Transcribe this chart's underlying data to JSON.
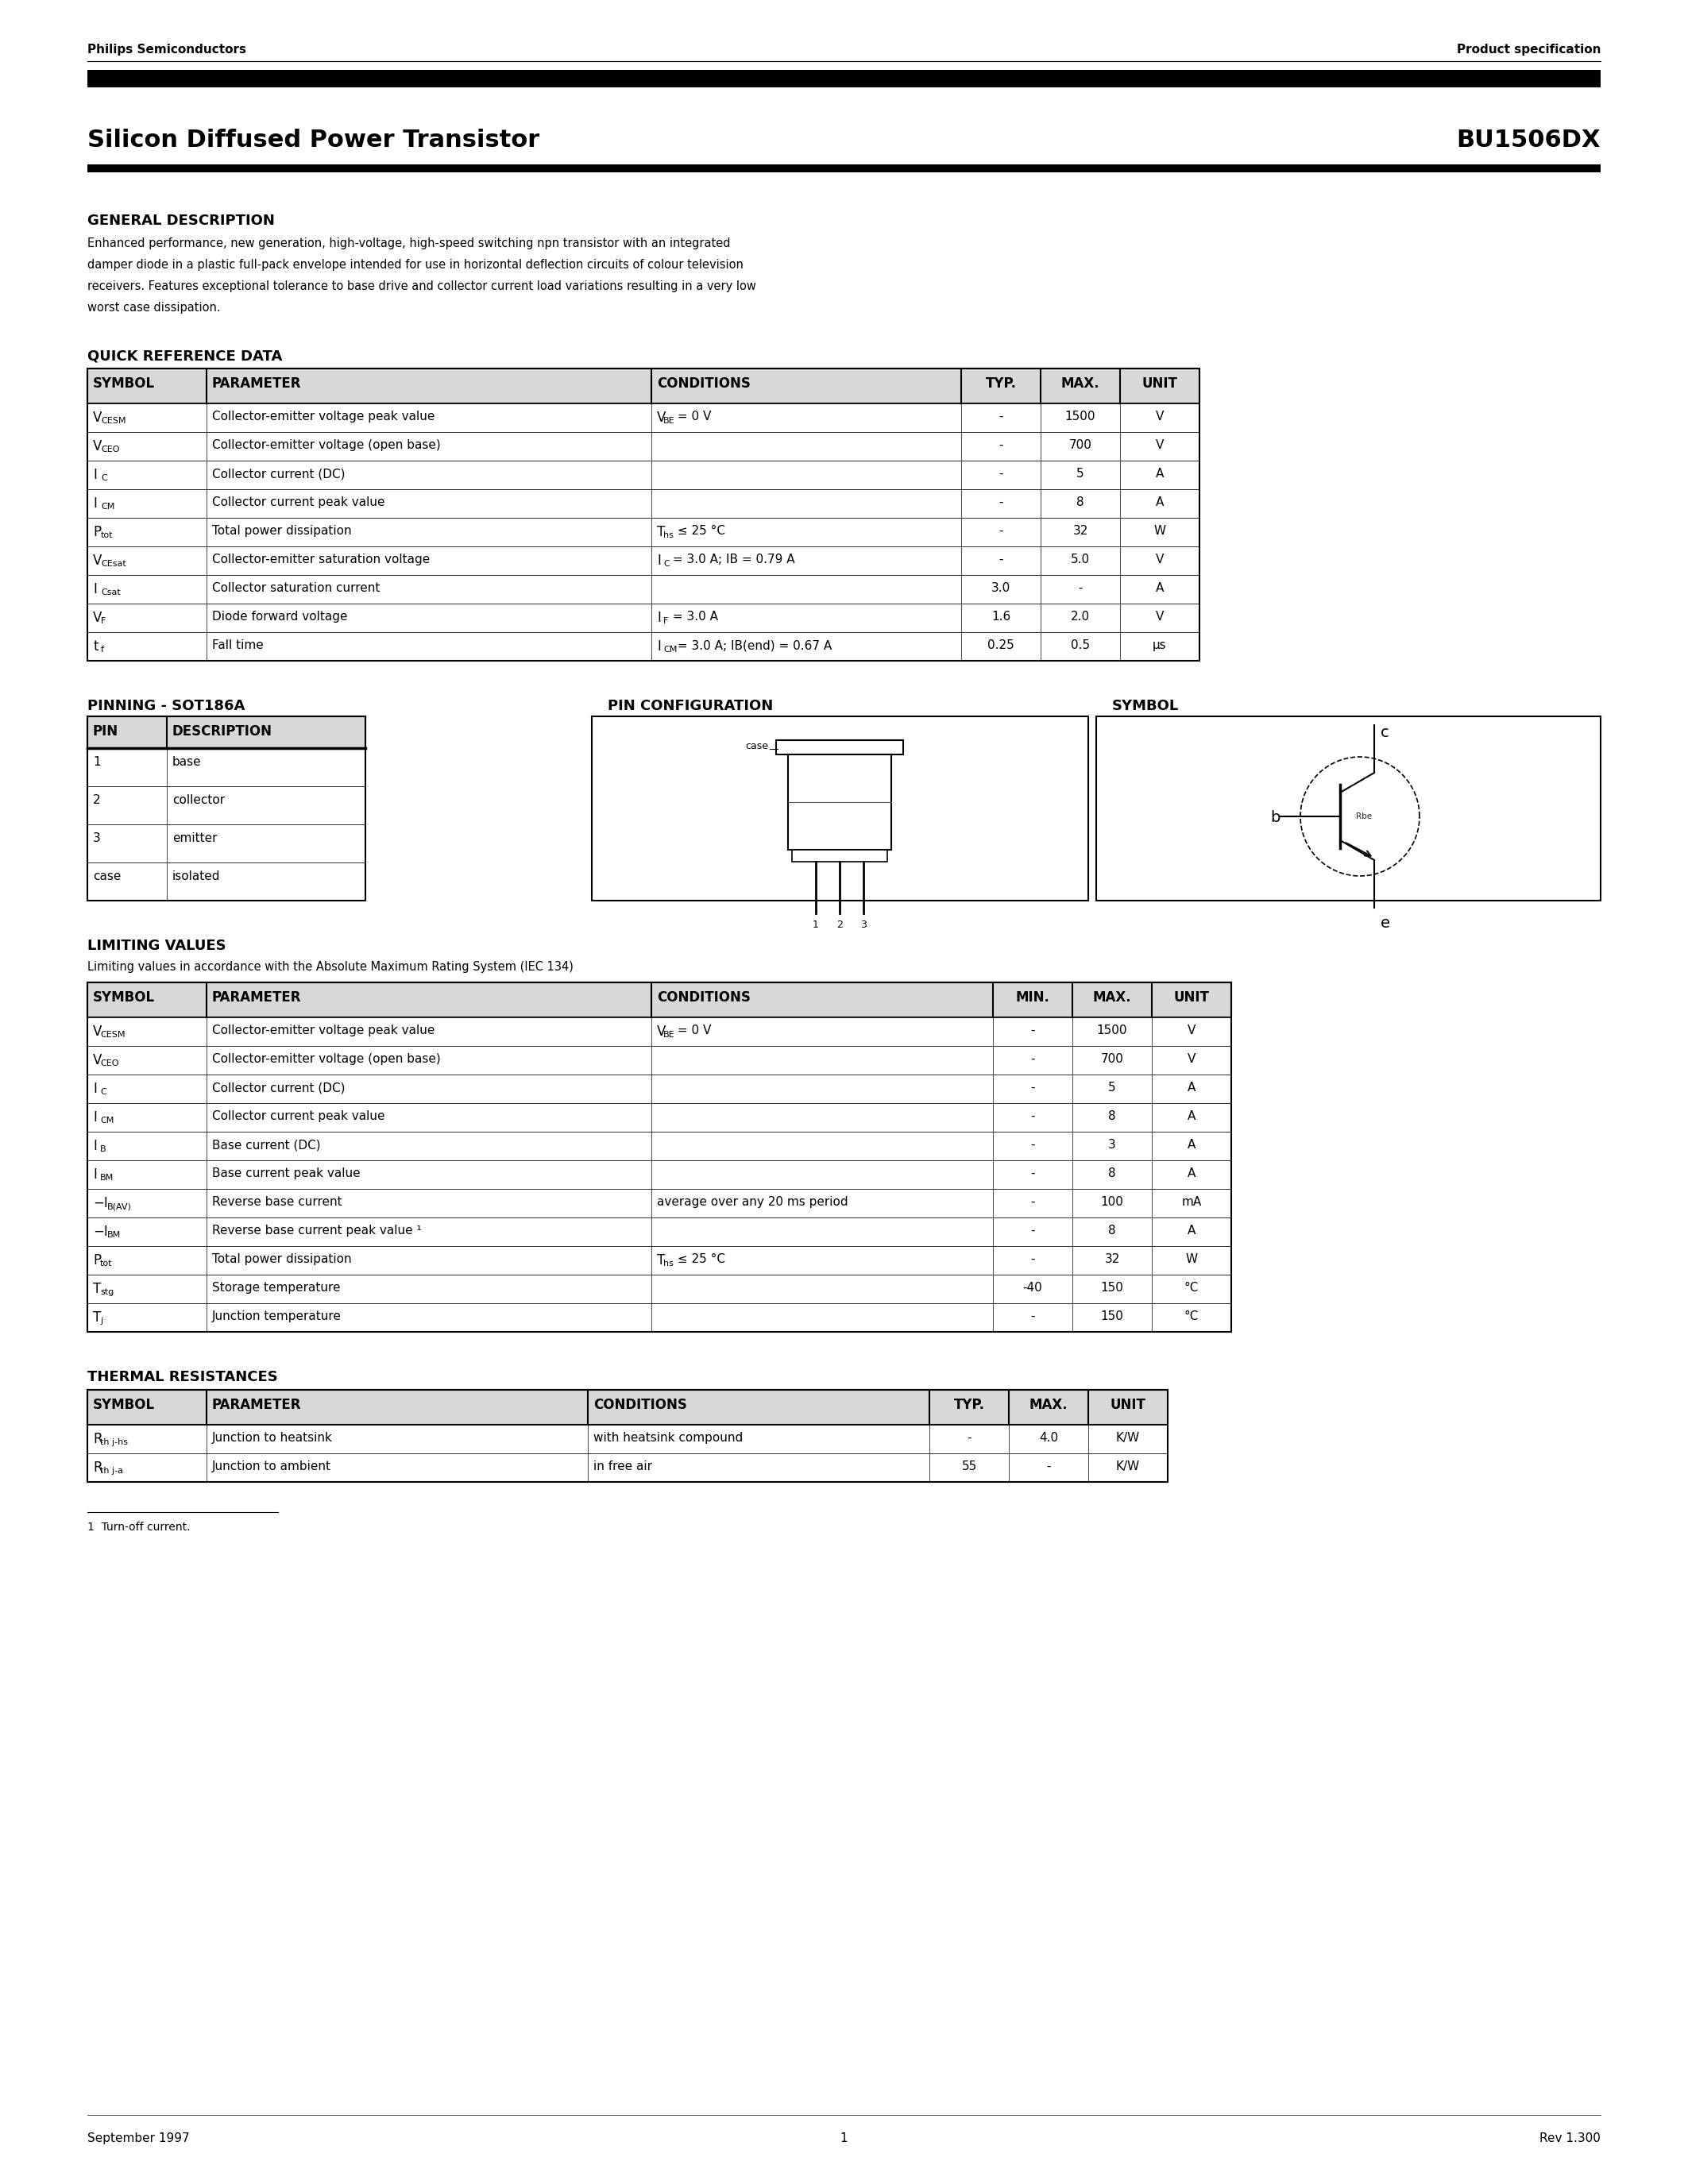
{
  "company": "Philips Semiconductors",
  "doc_type": "Product specification",
  "title": "Silicon Diffused Power Transistor",
  "part_number": "BU1506DX",
  "date": "September 1997",
  "page": "1",
  "rev": "Rev 1.300",
  "general_desc_title": "GENERAL DESCRIPTION",
  "general_desc_text_lines": [
    "Enhanced performance, new generation, high-voltage, high-speed switching npn transistor with an integrated",
    "damper diode in a plastic full-pack envelope intended for use in horizontal deflection circuits of colour television",
    "receivers. Features exceptional tolerance to base drive and collector current load variations resulting in a very low",
    "worst case dissipation."
  ],
  "quick_ref_title": "QUICK REFERENCE DATA",
  "qr_col_widths": [
    150,
    560,
    390,
    100,
    100,
    100
  ],
  "qr_headers": [
    "SYMBOL",
    "PARAMETER",
    "CONDITIONS",
    "TYP.",
    "MAX.",
    "UNIT"
  ],
  "qr_sym_main": [
    "V",
    "V",
    "I",
    "I",
    "P",
    "V",
    "I",
    "V",
    "t"
  ],
  "qr_sym_sub": [
    "CESM",
    "CEO",
    "C",
    "CM",
    "tot",
    "CEsat",
    "Csat",
    "F",
    "f"
  ],
  "qr_params": [
    "Collector-emitter voltage peak value",
    "Collector-emitter voltage (open base)",
    "Collector current (DC)",
    "Collector current peak value",
    "Total power dissipation",
    "Collector-emitter saturation voltage",
    "Collector saturation current",
    "Diode forward voltage",
    "Fall time"
  ],
  "qr_cond_main": [
    "V",
    "",
    "",
    "",
    "T",
    "I",
    "",
    "I",
    "I"
  ],
  "qr_cond_sub": [
    "BE",
    "",
    "",
    "",
    "hs",
    "C",
    "",
    "F",
    "CM"
  ],
  "qr_cond_rest": [
    " = 0 V",
    "",
    "",
    "",
    " ≤ 25 °C",
    " = 3.0 A; IB = 0.79 A",
    "",
    " = 3.0 A",
    " = 3.0 A; IB(end) = 0.67 A"
  ],
  "qr_typ": [
    "-",
    "-",
    "-",
    "-",
    "-",
    "-",
    "3.0",
    "1.6",
    "0.25"
  ],
  "qr_max": [
    "1500",
    "700",
    "5",
    "8",
    "32",
    "5.0",
    "-",
    "2.0",
    "0.5"
  ],
  "qr_unit": [
    "V",
    "V",
    "A",
    "A",
    "W",
    "V",
    "A",
    "V",
    "μs"
  ],
  "pinning_title": "PINNING - SOT186A",
  "pin_config_title": "PIN CONFIGURATION",
  "symbol_title": "SYMBOL",
  "pin_headers": [
    "PIN",
    "DESCRIPTION"
  ],
  "pin_rows": [
    [
      "1",
      "base"
    ],
    [
      "2",
      "collector"
    ],
    [
      "3",
      "emitter"
    ],
    [
      "case",
      "isolated"
    ]
  ],
  "limiting_title": "LIMITING VALUES",
  "limiting_subtitle": "Limiting values in accordance with the Absolute Maximum Rating System (IEC 134)",
  "lv_col_widths": [
    150,
    560,
    430,
    100,
    100,
    100
  ],
  "lv_headers": [
    "SYMBOL",
    "PARAMETER",
    "CONDITIONS",
    "MIN.",
    "MAX.",
    "UNIT"
  ],
  "lv_sym_main": [
    "V",
    "V",
    "I",
    "I",
    "I",
    "I",
    "−I",
    "−I",
    "P",
    "T",
    "T"
  ],
  "lv_sym_sub": [
    "CESM",
    "CEO",
    "C",
    "CM",
    "B",
    "BM",
    "B(AV)",
    "BM",
    "tot",
    "stg",
    "j"
  ],
  "lv_params": [
    "Collector-emitter voltage peak value",
    "Collector-emitter voltage (open base)",
    "Collector current (DC)",
    "Collector current peak value",
    "Base current (DC)",
    "Base current peak value",
    "Reverse base current",
    "Reverse base current peak value ¹",
    "Total power dissipation",
    "Storage temperature",
    "Junction temperature"
  ],
  "lv_cond_main": [
    "V",
    "",
    "",
    "",
    "",
    "",
    "",
    "",
    "T",
    "",
    ""
  ],
  "lv_cond_sub": [
    "BE",
    "",
    "",
    "",
    "",
    "",
    "",
    "",
    "hs",
    "",
    ""
  ],
  "lv_cond_rest": [
    " = 0 V",
    "",
    "",
    "",
    "",
    "",
    "average over any 20 ms period",
    "",
    " ≤ 25 °C",
    "",
    ""
  ],
  "lv_min": [
    "-",
    "-",
    "-",
    "-",
    "-",
    "-",
    "-",
    "-",
    "-",
    "-40",
    "-"
  ],
  "lv_max": [
    "1500",
    "700",
    "5",
    "8",
    "3",
    "8",
    "100",
    "8",
    "32",
    "150",
    "150"
  ],
  "lv_unit": [
    "V",
    "V",
    "A",
    "A",
    "A",
    "A",
    "mA",
    "A",
    "W",
    "°C",
    "°C"
  ],
  "thermal_title": "THERMAL RESISTANCES",
  "th_col_widths": [
    150,
    480,
    430,
    100,
    100,
    100
  ],
  "th_headers": [
    "SYMBOL",
    "PARAMETER",
    "CONDITIONS",
    "TYP.",
    "MAX.",
    "UNIT"
  ],
  "th_sym_main": [
    "R",
    "R"
  ],
  "th_sym_sub": [
    "th j-hs",
    "th j-a"
  ],
  "th_params": [
    "Junction to heatsink",
    "Junction to ambient"
  ],
  "th_conds": [
    "with heatsink compound",
    "in free air"
  ],
  "th_typ": [
    "-",
    "55"
  ],
  "th_max": [
    "4.0",
    "-"
  ],
  "th_unit": [
    "K/W",
    "K/W"
  ],
  "footnote": "1  Turn-off current.",
  "bg_color": "#ffffff"
}
